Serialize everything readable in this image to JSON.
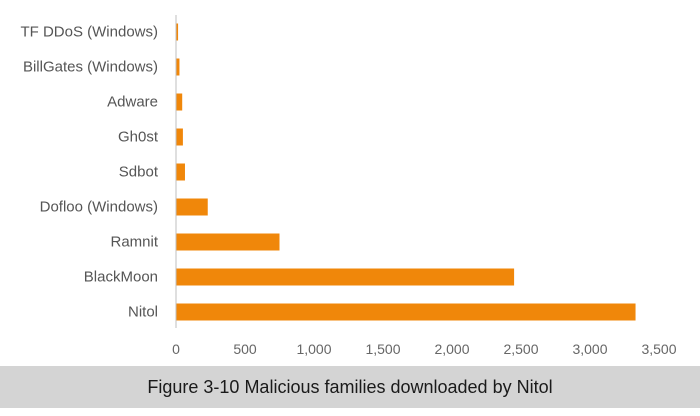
{
  "chart_data": {
    "type": "bar",
    "orientation": "horizontal",
    "categories": [
      "TF DDoS (Windows)",
      "BillGates (Windows)",
      "Adware",
      "Gh0st",
      "Sdbot",
      "Dofloo (Windows)",
      "Ramnit",
      "BlackMoon",
      "Nitol"
    ],
    "values": [
      15,
      25,
      45,
      50,
      65,
      230,
      750,
      2450,
      3330
    ],
    "xlim": [
      0,
      3500
    ],
    "xticks": [
      0,
      500,
      1000,
      1500,
      2000,
      2500,
      3000,
      3500
    ],
    "xtick_labels": [
      "0",
      "500",
      "1,000",
      "1,500",
      "2,000",
      "2,500",
      "3,000",
      "3,500"
    ],
    "grid": false,
    "bar_color": "#f0870a",
    "title": "",
    "xlabel": "",
    "ylabel": ""
  },
  "caption": {
    "text": "Figure 3-10 Malicious families downloaded by Nitol"
  },
  "colors": {
    "bar": "#f0870a",
    "axis": "#bfbfbf",
    "caption_band": "#d4d4d4"
  }
}
